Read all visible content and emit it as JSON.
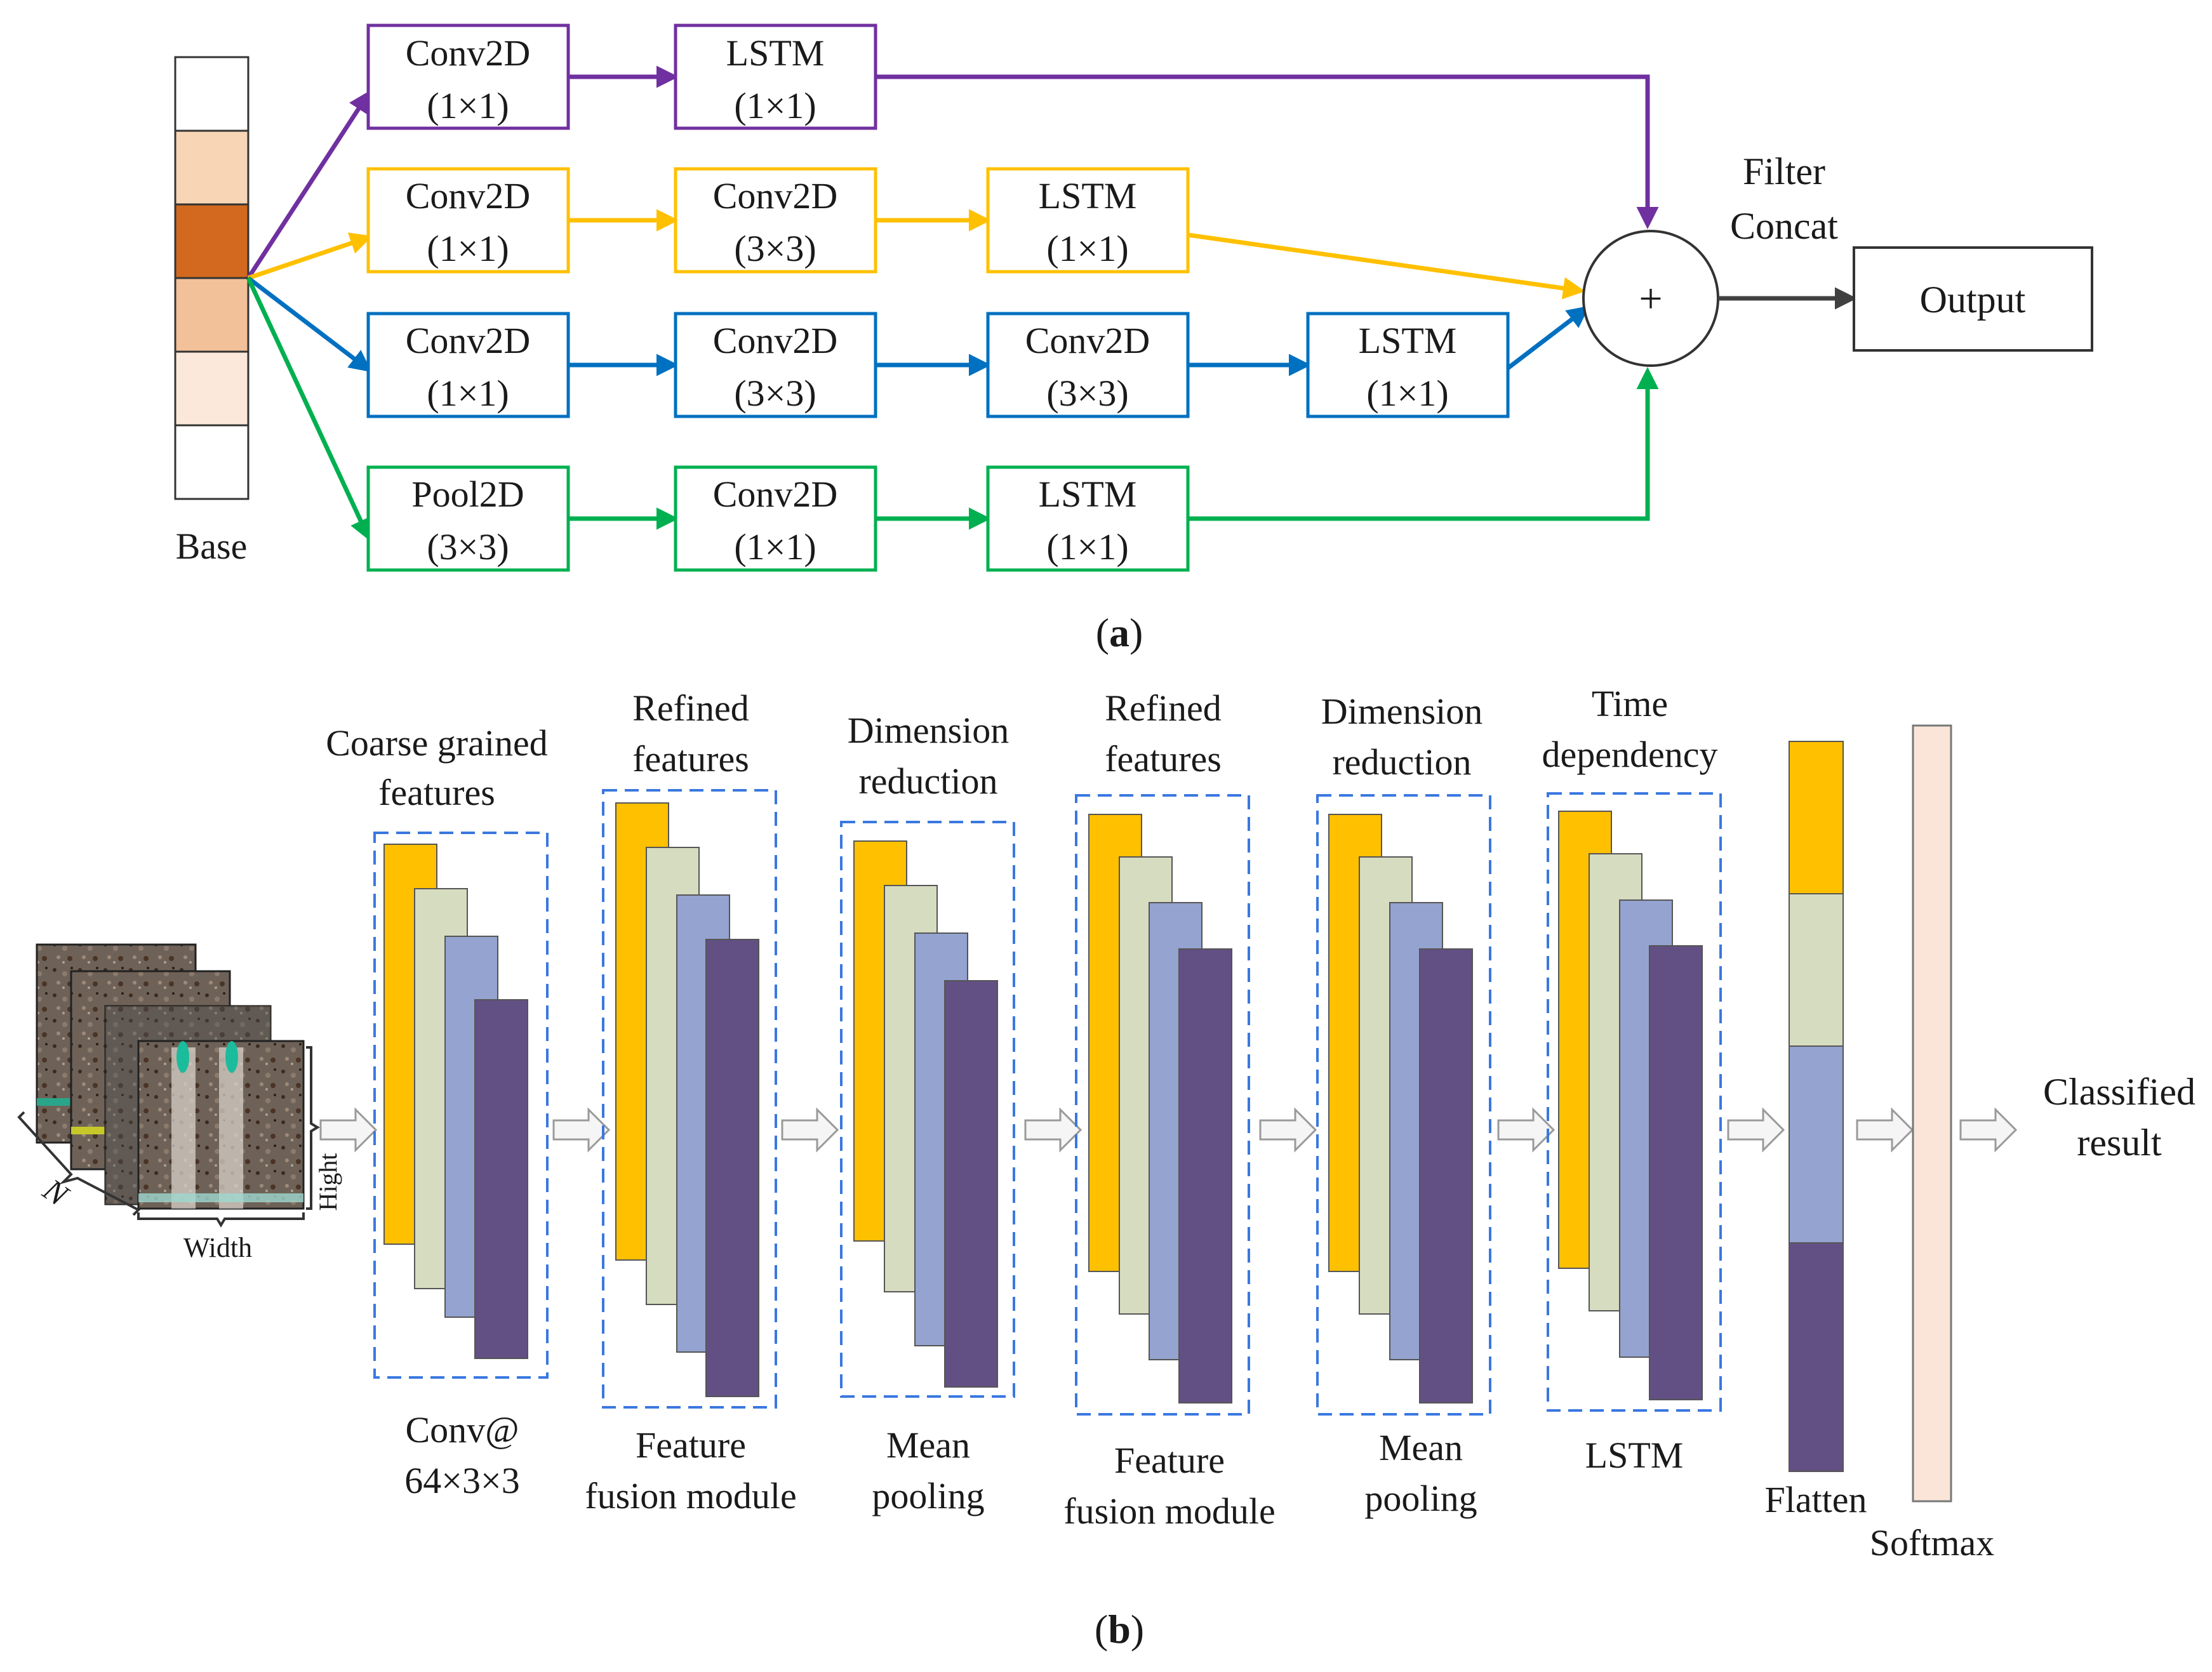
{
  "panel_a": {
    "caption_open": "(",
    "caption_letter": "a",
    "caption_close": ")",
    "base_label": "Base",
    "branches": [
      {
        "color": "#7030a0",
        "boxes": [
          [
            "Conv2D",
            "(1×1)"
          ],
          [
            "LSTM",
            "(1×1)"
          ]
        ]
      },
      {
        "color": "#ffc000",
        "boxes": [
          [
            "Conv2D",
            "(1×1)"
          ],
          [
            "Conv2D",
            "(3×3)"
          ],
          [
            "LSTM",
            "(1×1)"
          ]
        ]
      },
      {
        "color": "#0070c0",
        "boxes": [
          [
            "Conv2D",
            "(1×1)"
          ],
          [
            "Conv2D",
            "(3×3)"
          ],
          [
            "Conv2D",
            "(3×3)"
          ],
          [
            "LSTM",
            "(1×1)"
          ]
        ]
      },
      {
        "color": "#00b050",
        "boxes": [
          [
            "Pool2D",
            "(3×3)"
          ],
          [
            "Conv2D",
            "(1×1)"
          ],
          [
            "LSTM",
            "(1×1)"
          ]
        ]
      }
    ],
    "concat_symbol": "+",
    "concat_label_1": "Filter",
    "concat_label_2": "Concat",
    "output_label": "Output"
  },
  "panel_b": {
    "caption_open": "(",
    "caption_letter": "b",
    "caption_close": ")",
    "input": {
      "n_label": "N",
      "width_label": "Width",
      "height_label": "Hight"
    },
    "stages": [
      {
        "top": [
          "Coarse grained",
          "features"
        ],
        "bottom": [
          "Conv@",
          "64×3×3"
        ]
      },
      {
        "top": [
          "Refined",
          "features"
        ],
        "bottom": [
          "Feature",
          "fusion module"
        ]
      },
      {
        "top": [
          "Dimension",
          "reduction"
        ],
        "bottom": [
          "Mean",
          "pooling"
        ]
      },
      {
        "top": [
          "Refined",
          "features"
        ],
        "bottom": [
          "Feature",
          "fusion module"
        ]
      },
      {
        "top": [
          "Dimension",
          "reduction"
        ],
        "bottom": [
          "Mean",
          "pooling"
        ]
      },
      {
        "top": [
          "Time",
          "dependency"
        ],
        "bottom": [
          "LSTM"
        ]
      }
    ],
    "flatten_label": "Flatten",
    "softmax_label": "Softmax",
    "result_label_1": "Classified",
    "result_label_2": "result",
    "feature_colors": [
      "#ffc000",
      "#d6dcc0",
      "#94a3cf",
      "#625084"
    ]
  }
}
